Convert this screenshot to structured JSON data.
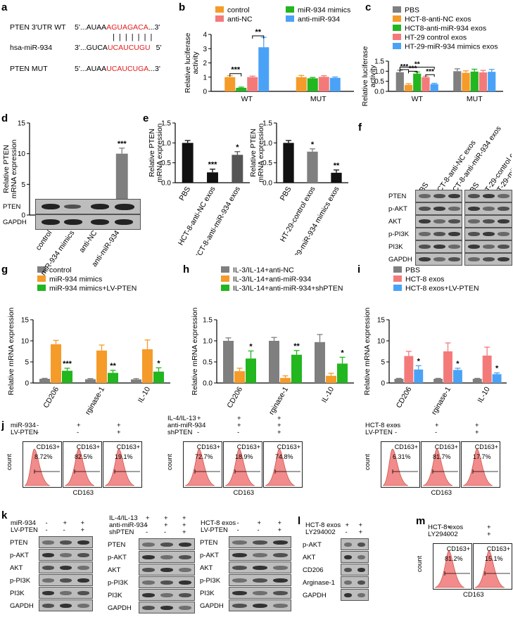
{
  "panel_labels": {
    "a": "a",
    "b": "b",
    "c": "c",
    "d": "d",
    "e": "e",
    "f": "f",
    "g": "g",
    "h": "h",
    "i": "i",
    "j": "j",
    "k": "k",
    "l": "l",
    "m": "m"
  },
  "panel_a": {
    "wt_label": "PTEN 3'UTR WT",
    "wt_prefix": "5'...AUAA",
    "wt_red": "AGUAGACA",
    "wt_suffix": "...3'",
    "mir_label": "hsa-miR-934",
    "mir_prefix": "3'...GUCA",
    "mir_red": "UCAUCUGU",
    "mir_suffix": "5'",
    "mut_label": "PTEN MUT",
    "mut_prefix": "5'...AUAA",
    "mut_red": "UCAUCUGA",
    "mut_suffix": "...3'",
    "pairing": "| | | | | | |"
  },
  "colors": {
    "gray": "#7f7f7f",
    "orange": "#f59b29",
    "green": "#22b61f",
    "pink": "#f47a7a",
    "blue": "#4aa2f7",
    "dark": "#111111",
    "hist": "#f28b8b"
  },
  "chart_data": [
    {
      "id": "b",
      "type": "bar",
      "ylabel": "Relative luciferase activity",
      "categories": [
        "WT",
        "MUT"
      ],
      "ylim": [
        0,
        4
      ],
      "yticks": [
        "0",
        "1",
        "2",
        "3",
        "4"
      ],
      "series": [
        {
          "name": "control",
          "color": "#f59b29",
          "values": [
            1.0,
            1.0
          ]
        },
        {
          "name": "miR-934 mimics",
          "color": "#22b61f",
          "values": [
            0.25,
            0.92
          ]
        },
        {
          "name": "anti-NC",
          "color": "#f47a7a",
          "values": [
            1.0,
            1.02
          ]
        },
        {
          "name": "anti-miR-934",
          "color": "#4aa2f7",
          "values": [
            3.1,
            0.95
          ]
        }
      ],
      "errors": [
        [
          0.1,
          0.12
        ],
        [
          0.05,
          0.06
        ],
        [
          0.07,
          0.08
        ],
        [
          0.7,
          0.06
        ]
      ],
      "sig": [
        "***",
        "**"
      ]
    },
    {
      "id": "c",
      "type": "bar",
      "ylabel": "Relative luciferase activity",
      "categories": [
        "WT",
        "MUT"
      ],
      "ylim": [
        0,
        1.5
      ],
      "yticks": [
        "0.0",
        "0.5",
        "1.0",
        "1.5"
      ],
      "series": [
        {
          "name": "PBS",
          "color": "#7f7f7f",
          "values": [
            0.95,
            1.0
          ]
        },
        {
          "name": "HCT-8-anti-NC exos",
          "color": "#f59b29",
          "values": [
            0.32,
            0.92
          ]
        },
        {
          "name": "HCT8-anti-miR-934 exos",
          "color": "#22b61f",
          "values": [
            0.88,
            0.98
          ]
        },
        {
          "name": "HT-29 control exos",
          "color": "#f47a7a",
          "values": [
            0.7,
            0.94
          ]
        },
        {
          "name": "HT-29-miR-934 mimics exos",
          "color": "#4aa2f7",
          "values": [
            0.36,
            0.97
          ]
        }
      ],
      "errors": [
        [
          0.1,
          0.12
        ],
        [
          0.06,
          0.1
        ],
        [
          0.08,
          0.12
        ],
        [
          0.05,
          0.1
        ],
        [
          0.04,
          0.12
        ]
      ],
      "sig": [
        "***",
        "**",
        "***",
        "***"
      ]
    },
    {
      "id": "d",
      "type": "bar",
      "ylabel": "Relative PTEN mRNA expression",
      "categories": [
        "control",
        "miR-934 mimics",
        "anti-NC",
        "anti-miR-934"
      ],
      "ylim": [
        0,
        15
      ],
      "yticks": [
        "0",
        "5",
        "10",
        "15"
      ],
      "values": [
        1.0,
        0.15,
        0.95,
        10.0
      ],
      "colors": [
        "#111111",
        "#111111",
        "#7f7f7f",
        "#7f7f7f"
      ],
      "errors": [
        0.15,
        0.05,
        0.15,
        0.9
      ],
      "sig": [
        "",
        "***",
        "",
        "***"
      ]
    },
    {
      "id": "e1",
      "type": "bar",
      "ylabel": "Relative PTEN mRNA expression",
      "categories": [
        "PBS",
        "HCT-8-anti-NC exos",
        "HCT-8-anti-miR-934 exos"
      ],
      "ylim": [
        0,
        1.5
      ],
      "yticks": [
        "0.0",
        "0.5",
        "1.0",
        "1.5"
      ],
      "values": [
        1.0,
        0.26,
        0.7
      ],
      "colors": [
        "#111111",
        "#111111",
        "#555555"
      ],
      "errors": [
        0.06,
        0.08,
        0.08
      ],
      "sig": [
        "",
        "***",
        "*"
      ]
    },
    {
      "id": "e2",
      "type": "bar",
      "ylabel": "Relative PTEN mRNA expression",
      "categories": [
        "PBS",
        "HT-29-control exos",
        "HT-29-miR-934 mimics exos"
      ],
      "ylim": [
        0,
        1.5
      ],
      "yticks": [
        "0.0",
        "0.5",
        "1.0",
        "1.5"
      ],
      "values": [
        1.0,
        0.78,
        0.25
      ],
      "colors": [
        "#111111",
        "#7f7f7f",
        "#111111"
      ],
      "errors": [
        0.06,
        0.07,
        0.07
      ],
      "sig": [
        "",
        "*",
        "**"
      ]
    },
    {
      "id": "g",
      "type": "bar",
      "ylabel": "Relative mRNA expression",
      "categories": [
        "CD206",
        "Arginase-1",
        "IL-10"
      ],
      "ylim": [
        0,
        15
      ],
      "yticks": [
        "0",
        "5",
        "10",
        "15"
      ],
      "series": [
        {
          "name": "control",
          "color": "#7f7f7f",
          "values": [
            1.0,
            0.9,
            0.85
          ]
        },
        {
          "name": "miR-934 mimics",
          "color": "#f59b29",
          "values": [
            9.2,
            7.7,
            8.0
          ]
        },
        {
          "name": "miR-934 mimics+LV-PTEN",
          "color": "#22b61f",
          "values": [
            2.9,
            2.4,
            2.7
          ]
        }
      ],
      "errors": [
        [
          0.1,
          0.15,
          0.2
        ],
        [
          0.9,
          1.3,
          2.2
        ],
        [
          0.6,
          0.6,
          0.9
        ]
      ],
      "sig": [
        "***",
        "**",
        "*"
      ]
    },
    {
      "id": "h",
      "type": "bar",
      "ylabel": "Relative mRNA expression",
      "categories": [
        "CD206",
        "Arginase-1",
        "IL-10"
      ],
      "ylim": [
        0,
        1.5
      ],
      "yticks": [
        "0.0",
        "0.5",
        "1.0",
        "1.5"
      ],
      "series": [
        {
          "name": "IL-3/IL-14+anti-NC",
          "color": "#7f7f7f",
          "values": [
            1.0,
            1.0,
            0.97
          ]
        },
        {
          "name": "IL-3/IL-14+anti-miR-934",
          "color": "#f59b29",
          "values": [
            0.28,
            0.12,
            0.17
          ]
        },
        {
          "name": "IL-3/IL-14+anti-miR-934+shPTEN",
          "color": "#22b61f",
          "values": [
            0.58,
            0.67,
            0.46
          ]
        }
      ],
      "errors": [
        [
          0.07,
          0.08,
          0.18
        ],
        [
          0.07,
          0.05,
          0.06
        ],
        [
          0.18,
          0.1,
          0.15
        ]
      ],
      "sig": [
        "*",
        "**",
        "*"
      ]
    },
    {
      "id": "i",
      "type": "bar",
      "ylabel": "Relative mRNA expression",
      "categories": [
        "CD206",
        "Arginase-1",
        "IL-10"
      ],
      "ylim": [
        0,
        15
      ],
      "yticks": [
        "0",
        "5",
        "10",
        "15"
      ],
      "series": [
        {
          "name": "PBS",
          "color": "#7f7f7f",
          "values": [
            1.0,
            1.0,
            1.0
          ]
        },
        {
          "name": "HCT-8 exos",
          "color": "#f47a7a",
          "values": [
            6.4,
            7.5,
            6.5
          ]
        },
        {
          "name": "HCT-8 exos+LV-PTEN",
          "color": "#4aa2f7",
          "values": [
            3.2,
            3.1,
            2.1
          ]
        }
      ],
      "errors": [
        [
          0.1,
          0.1,
          0.1
        ],
        [
          1.1,
          2.0,
          2.0
        ],
        [
          0.9,
          0.4,
          0.3
        ]
      ],
      "sig": [
        "*",
        "*",
        "*"
      ]
    }
  ],
  "blots": {
    "f": {
      "lanes": [
        "PBS",
        "HCT-8-anti-NC exos",
        "HCT-8-anti-miR-934 exos",
        "PBS",
        "HT-29-control exos",
        "HT-29-miR-934 mimics exos"
      ],
      "rows": [
        "PTEN",
        "p-AKT",
        "AKT",
        "p-PI3K",
        "PI3K",
        "GAPDH"
      ]
    },
    "d": {
      "rows": [
        "PTEN",
        "GAPDH"
      ]
    },
    "k1": {
      "conds": [
        {
          "name": "miR-934",
          "signs": [
            "-",
            "+",
            "+"
          ]
        },
        {
          "name": "LV-PTEN",
          "signs": [
            "-",
            "-",
            "+"
          ]
        }
      ],
      "rows": [
        "PTEN",
        "p-AKT",
        "AKT",
        "p-PI3K",
        "PI3K",
        "GAPDH"
      ]
    },
    "k2": {
      "conds": [
        {
          "name": "IL-4/IL-13",
          "signs": [
            "+",
            "+",
            "+"
          ]
        },
        {
          "name": "anti-miR-934",
          "signs": [
            "-",
            "+",
            "+"
          ]
        },
        {
          "name": "shPTEN",
          "signs": [
            "-",
            "-",
            "+"
          ]
        }
      ],
      "rows": [
        "PTEN",
        "p-AKT",
        "AKT",
        "p-PI3K",
        "PI3K",
        "GAPDH"
      ]
    },
    "k3": {
      "conds": [
        {
          "name": "HCT-8 exos",
          "signs": [
            "-",
            "+",
            "+"
          ]
        },
        {
          "name": "LV-PTEN",
          "signs": [
            "-",
            "-",
            "+"
          ]
        }
      ],
      "rows": [
        "PTEN",
        "p-AKT",
        "AKT",
        "p-PI3K",
        "PI3K",
        "GAPDH"
      ]
    },
    "l": {
      "conds": [
        {
          "name": "HCT-8 exos",
          "signs": [
            "+",
            "+"
          ]
        },
        {
          "name": "LY294002",
          "signs": [
            "-",
            "+"
          ]
        }
      ],
      "rows": [
        "p-AKT",
        "AKT",
        "CD206",
        "Arginase-1",
        "GAPDH"
      ]
    }
  },
  "flow": {
    "j1": {
      "conds": [
        {
          "name": "miR-934",
          "signs": [
            "-",
            "+",
            "+"
          ]
        },
        {
          "name": "LV-PTEN",
          "signs": [
            "-",
            "-",
            "+"
          ]
        }
      ],
      "gate": "CD163+",
      "pcts": [
        "8.72%",
        "82.5%",
        "19.1%"
      ],
      "ylabel": "count",
      "xlabel": "CD163"
    },
    "j2": {
      "conds": [
        {
          "name": "IL-4/IL-13",
          "signs": [
            "+",
            "+",
            "+"
          ]
        },
        {
          "name": "anti-miR-934",
          "signs": [
            "-",
            "+",
            "+"
          ]
        },
        {
          "name": "shPTEN",
          "signs": [
            "-",
            "-",
            "+"
          ]
        }
      ],
      "gate": "CD163+",
      "pcts": [
        "72.7%",
        "18.9%",
        "74.8%"
      ],
      "ylabel": "count",
      "xlabel": "CD163"
    },
    "j3": {
      "conds": [
        {
          "name": "HCT-8 exos",
          "signs": [
            "-",
            "+",
            "+"
          ]
        },
        {
          "name": "LV-PTEN",
          "signs": [
            "-",
            "-",
            "+"
          ]
        }
      ],
      "gate": "CD163+",
      "pcts": [
        "6.31%",
        "81.7%",
        "17.7%"
      ],
      "ylabel": "count",
      "xlabel": "CD163"
    },
    "m": {
      "conds": [
        {
          "name": "HCT-8 exos",
          "signs": [
            "+",
            "+"
          ]
        },
        {
          "name": "LY294002",
          "signs": [
            "-",
            "+"
          ]
        }
      ],
      "gate": "CD163+",
      "pcts": [
        "81.2%",
        "15.1%"
      ],
      "ylabel": "count",
      "xlabel": "CD163"
    }
  }
}
